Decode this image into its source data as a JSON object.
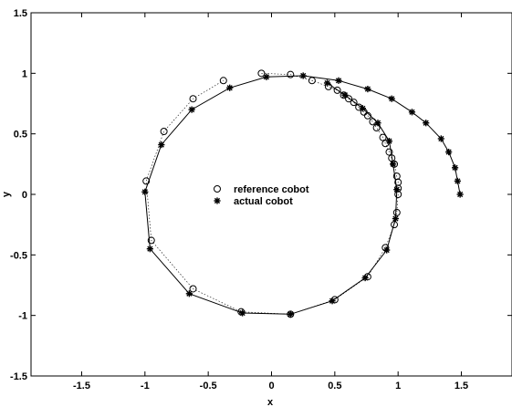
{
  "chart_data": {
    "type": "scatter",
    "title": "",
    "xlabel": "x",
    "ylabel": "y",
    "xlim": [
      -1.9,
      1.9
    ],
    "ylim": [
      -1.5,
      1.5
    ],
    "xticks": [
      -1.5,
      -1,
      -0.5,
      0,
      0.5,
      1,
      1.5
    ],
    "xtick_labels": [
      "-1.5",
      "-1",
      "-0.5",
      "0",
      "0.5",
      "1",
      "1.5"
    ],
    "yticks": [
      -1.5,
      -1,
      -0.5,
      0,
      0.5,
      1,
      1.5
    ],
    "ytick_labels": [
      "-1.5",
      "-1",
      "-0.5",
      "0",
      "0.5",
      "1",
      "1.5"
    ],
    "grid": false,
    "legend_position": "center",
    "series": [
      {
        "name": "reference cobot",
        "marker": "circle",
        "points": [
          [
            -0.08,
            1.0
          ],
          [
            0.15,
            0.99
          ],
          [
            0.32,
            0.94
          ],
          [
            0.45,
            0.89
          ],
          [
            0.52,
            0.86
          ],
          [
            0.57,
            0.82
          ],
          [
            0.61,
            0.79
          ],
          [
            0.65,
            0.76
          ],
          [
            0.69,
            0.72
          ],
          [
            0.73,
            0.68
          ],
          [
            0.76,
            0.65
          ],
          [
            0.8,
            0.6
          ],
          [
            0.83,
            0.55
          ],
          [
            0.88,
            0.47
          ],
          [
            0.9,
            0.42
          ],
          [
            0.93,
            0.35
          ],
          [
            0.95,
            0.3
          ],
          [
            0.97,
            0.25
          ],
          [
            0.99,
            0.15
          ],
          [
            1.0,
            0.1
          ],
          [
            1.0,
            0.05
          ],
          [
            1.0,
            0.0
          ],
          [
            0.99,
            -0.15
          ],
          [
            0.97,
            -0.25
          ],
          [
            0.9,
            -0.44
          ],
          [
            0.76,
            -0.68
          ],
          [
            0.5,
            -0.87
          ],
          [
            0.15,
            -0.99
          ],
          [
            -0.24,
            -0.97
          ],
          [
            -0.62,
            -0.78
          ],
          [
            -0.95,
            -0.38
          ],
          [
            -0.99,
            0.11
          ],
          [
            -0.85,
            0.52
          ],
          [
            -0.62,
            0.79
          ],
          [
            -0.38,
            0.94
          ]
        ]
      },
      {
        "name": "actual cobot",
        "marker": "star",
        "points": [
          [
            1.49,
            0.0
          ],
          [
            1.47,
            0.11
          ],
          [
            1.45,
            0.22
          ],
          [
            1.4,
            0.35
          ],
          [
            1.34,
            0.46
          ],
          [
            1.22,
            0.59
          ],
          [
            1.11,
            0.68
          ],
          [
            0.95,
            0.79
          ],
          [
            0.76,
            0.87
          ],
          [
            0.53,
            0.94
          ],
          [
            0.25,
            0.98
          ],
          [
            -0.04,
            0.97
          ],
          [
            -0.33,
            0.88
          ],
          [
            -0.63,
            0.7
          ],
          [
            -0.87,
            0.41
          ],
          [
            -1.0,
            0.02
          ],
          [
            -0.96,
            -0.45
          ],
          [
            -0.65,
            -0.82
          ],
          [
            -0.23,
            -0.98
          ],
          [
            0.15,
            -0.99
          ],
          [
            0.48,
            -0.88
          ],
          [
            0.74,
            -0.69
          ],
          [
            0.91,
            -0.46
          ],
          [
            0.98,
            -0.2
          ],
          [
            0.99,
            0.04
          ],
          [
            0.96,
            0.25
          ],
          [
            0.93,
            0.44
          ],
          [
            0.84,
            0.59
          ],
          [
            0.72,
            0.71
          ],
          [
            0.58,
            0.82
          ],
          [
            0.44,
            0.92
          ]
        ]
      }
    ]
  }
}
